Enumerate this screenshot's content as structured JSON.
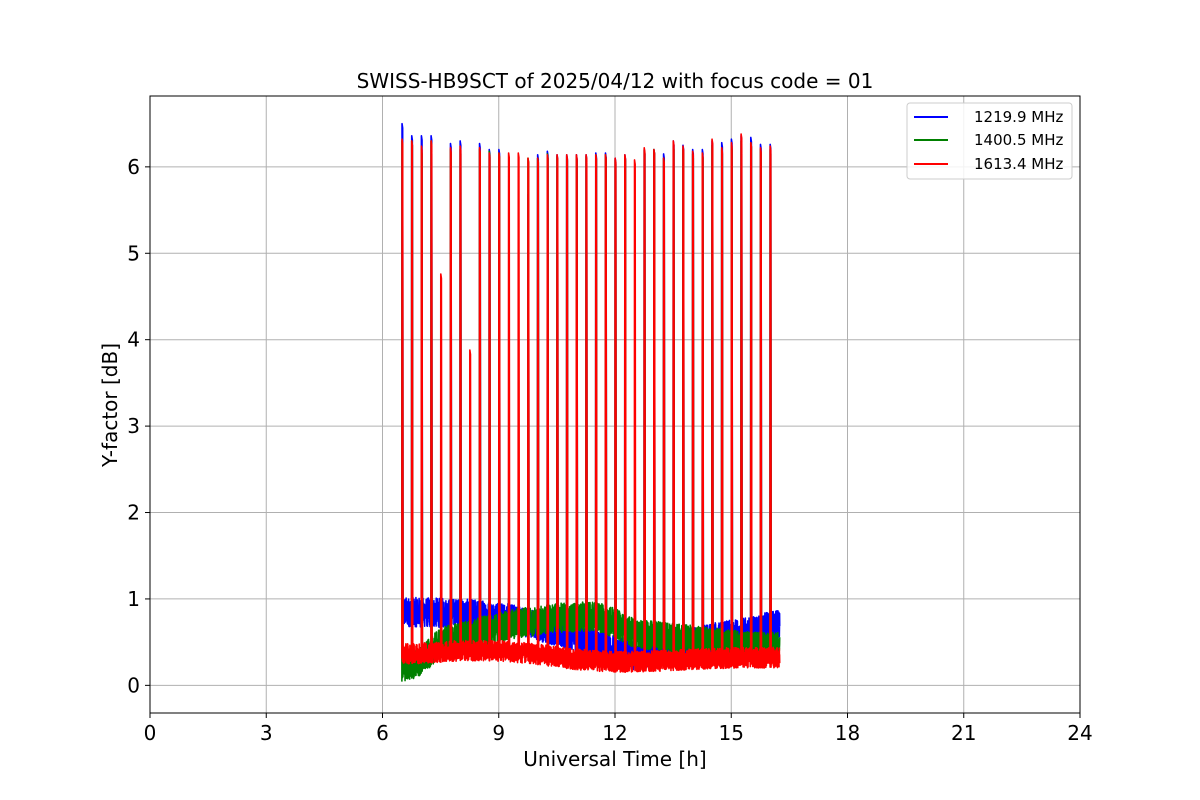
{
  "chart_data": {
    "type": "line",
    "title": "SWISS-HB9SCT of 2025/04/12 with focus code = 01",
    "xlabel": "Universal Time [h]",
    "ylabel": "Y-factor [dB]",
    "xlim": [
      0,
      24
    ],
    "ylim": [
      -0.32,
      6.82
    ],
    "xticks": [
      0,
      3,
      6,
      9,
      12,
      15,
      18,
      21,
      24
    ],
    "yticks": [
      0,
      1,
      2,
      3,
      4,
      5,
      6
    ],
    "grid": true,
    "legend_position": "top-right",
    "time_range": [
      6.5,
      16.25
    ],
    "calibration_spikes": {
      "times": [
        6.5,
        6.75,
        7.0,
        7.25,
        7.5,
        7.75,
        8.0,
        8.25,
        8.5,
        8.75,
        9.0,
        9.25,
        9.5,
        9.75,
        10.0,
        10.25,
        10.5,
        10.75,
        11.0,
        11.25,
        11.5,
        11.75,
        12.0,
        12.25,
        12.5,
        12.75,
        13.0,
        13.25,
        13.5,
        13.75,
        14.0,
        14.25,
        14.5,
        14.75,
        15.0,
        15.25,
        15.5,
        15.75,
        16.0
      ]
    },
    "series": [
      {
        "name": "1219.9 MHz",
        "color": "#0000ff",
        "baseline": [
          [
            6.5,
            0.85
          ],
          [
            7.5,
            0.84
          ],
          [
            8.5,
            0.82
          ],
          [
            9.5,
            0.76
          ],
          [
            10.5,
            0.62
          ],
          [
            11.5,
            0.48
          ],
          [
            12.5,
            0.35
          ],
          [
            13.5,
            0.45
          ],
          [
            14.5,
            0.55
          ],
          [
            15.5,
            0.62
          ],
          [
            16.25,
            0.72
          ]
        ],
        "spike_peaks": [
          6.5,
          6.36,
          6.36,
          6.36,
          1.0,
          6.27,
          6.3,
          1.0,
          6.27,
          6.2,
          6.2,
          1.0,
          1.0,
          5.68,
          6.14,
          6.18,
          6.14,
          6.14,
          6.14,
          6.14,
          6.16,
          6.16,
          6.1,
          6.14,
          1.0,
          6.2,
          6.2,
          6.15,
          6.3,
          6.25,
          6.2,
          6.2,
          6.3,
          6.28,
          6.32,
          6.36,
          6.34,
          6.26,
          6.26
        ]
      },
      {
        "name": "1400.5 MHz",
        "color": "#008000",
        "baseline": [
          [
            6.5,
            0.2
          ],
          [
            7.0,
            0.28
          ],
          [
            7.5,
            0.5
          ],
          [
            8.5,
            0.62
          ],
          [
            9.5,
            0.72
          ],
          [
            10.5,
            0.78
          ],
          [
            11.5,
            0.8
          ],
          [
            12.0,
            0.72
          ],
          [
            12.5,
            0.6
          ],
          [
            13.5,
            0.55
          ],
          [
            14.5,
            0.5
          ],
          [
            15.5,
            0.45
          ],
          [
            16.25,
            0.45
          ]
        ],
        "spike_peaks": [
          6.3,
          6.3,
          6.2,
          6.3,
          1.0,
          6.2,
          6.2,
          1.0,
          6.2,
          6.18,
          6.16,
          1.0,
          1.0,
          6.1,
          6.1,
          6.15,
          6.12,
          6.12,
          6.12,
          6.12,
          6.14,
          6.14,
          6.08,
          6.12,
          1.0,
          6.2,
          6.2,
          6.1,
          6.25,
          6.2,
          6.15,
          6.15,
          6.25,
          6.2,
          6.25,
          6.3,
          6.28,
          6.2,
          6.2
        ]
      },
      {
        "name": "1613.4 MHz",
        "color": "#ff0000",
        "baseline": [
          [
            6.5,
            0.36
          ],
          [
            8.0,
            0.4
          ],
          [
            9.0,
            0.4
          ],
          [
            10.0,
            0.36
          ],
          [
            11.0,
            0.3
          ],
          [
            12.0,
            0.27
          ],
          [
            13.0,
            0.28
          ],
          [
            14.0,
            0.3
          ],
          [
            15.0,
            0.32
          ],
          [
            16.25,
            0.32
          ]
        ],
        "spike_peaks": [
          6.32,
          6.3,
          6.24,
          6.3,
          4.76,
          6.22,
          6.24,
          3.88,
          6.22,
          6.16,
          6.16,
          6.16,
          6.16,
          6.1,
          6.1,
          6.14,
          6.14,
          6.14,
          6.14,
          6.14,
          6.14,
          6.14,
          6.1,
          6.14,
          6.08,
          6.22,
          6.2,
          6.1,
          6.3,
          6.24,
          6.18,
          6.16,
          6.32,
          6.22,
          6.28,
          6.38,
          6.28,
          6.22,
          6.24
        ]
      }
    ]
  }
}
